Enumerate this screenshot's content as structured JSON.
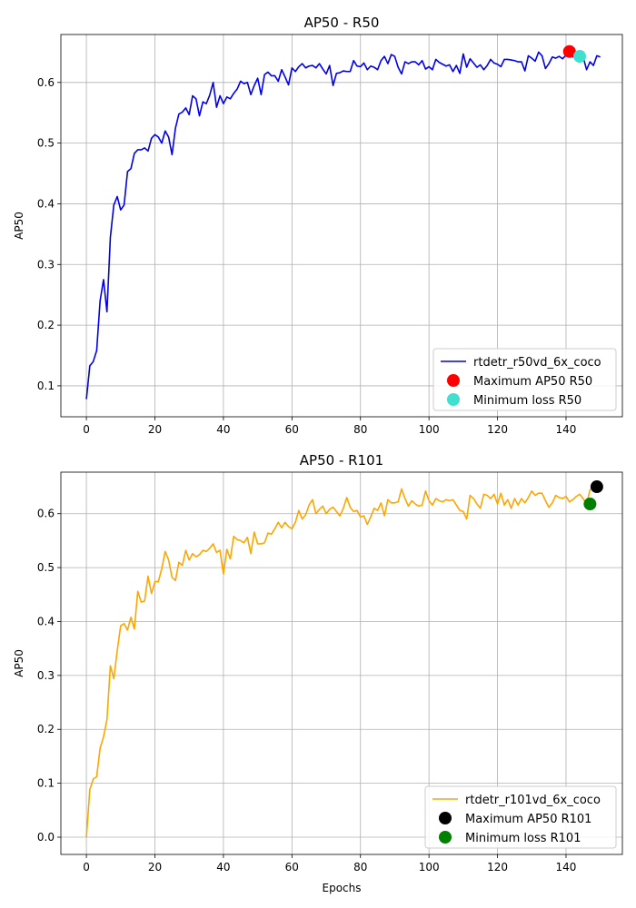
{
  "chart_data": [
    {
      "type": "line",
      "title": "AP50 - R50",
      "xlabel": "",
      "ylabel": "AP50",
      "xlim": [
        -7.45,
        156.45
      ],
      "ylim": [
        0.049,
        0.679
      ],
      "xticks": [
        0,
        20,
        40,
        60,
        80,
        100,
        120,
        140
      ],
      "yticks": [
        0.1,
        0.2,
        0.3,
        0.4,
        0.5,
        0.6
      ],
      "ytick_labels": [
        "0.1",
        "0.2",
        "0.3",
        "0.4",
        "0.5",
        "0.6"
      ],
      "grid": true,
      "legend_position": "lower-right",
      "series": [
        {
          "name": "rtdetr_r50vd_6x_coco",
          "color": "#0000ee",
          "x_start": 0,
          "x_step": 1,
          "values": [
            0.078,
            0.133,
            0.14,
            0.158,
            0.24,
            0.275,
            0.222,
            0.345,
            0.398,
            0.412,
            0.39,
            0.398,
            0.453,
            0.458,
            0.483,
            0.489,
            0.489,
            0.492,
            0.487,
            0.508,
            0.514,
            0.51,
            0.5,
            0.52,
            0.51,
            0.481,
            0.525,
            0.548,
            0.551,
            0.558,
            0.547,
            0.578,
            0.573,
            0.545,
            0.568,
            0.565,
            0.579,
            0.6,
            0.559,
            0.578,
            0.565,
            0.576,
            0.573,
            0.582,
            0.589,
            0.602,
            0.598,
            0.6,
            0.58,
            0.595,
            0.607,
            0.58,
            0.613,
            0.617,
            0.611,
            0.611,
            0.602,
            0.621,
            0.609,
            0.596,
            0.624,
            0.618,
            0.626,
            0.631,
            0.624,
            0.627,
            0.628,
            0.624,
            0.631,
            0.622,
            0.614,
            0.628,
            0.595,
            0.615,
            0.616,
            0.619,
            0.618,
            0.618,
            0.636,
            0.627,
            0.626,
            0.632,
            0.621,
            0.627,
            0.625,
            0.621,
            0.636,
            0.643,
            0.631,
            0.646,
            0.643,
            0.625,
            0.614,
            0.634,
            0.631,
            0.634,
            0.634,
            0.629,
            0.636,
            0.622,
            0.626,
            0.621,
            0.638,
            0.633,
            0.63,
            0.627,
            0.629,
            0.618,
            0.628,
            0.615,
            0.647,
            0.625,
            0.639,
            0.632,
            0.625,
            0.629,
            0.621,
            0.628,
            0.638,
            0.632,
            0.63,
            0.626,
            0.638,
            0.638,
            0.637,
            0.636,
            0.634,
            0.634,
            0.619,
            0.644,
            0.64,
            0.635,
            0.65,
            0.644,
            0.623,
            0.631,
            0.642,
            0.64,
            0.643,
            0.639,
            0.645,
            0.646,
            0.642,
            0.648,
            0.638,
            0.642,
            0.621,
            0.634,
            0.628,
            0.644,
            0.642
          ]
        }
      ],
      "markers": [
        {
          "name": "Maximum AP50 R50",
          "x": 141,
          "y": 0.651,
          "color": "#ff0000"
        },
        {
          "name": "Minimum loss R50",
          "x": 144,
          "y": 0.643,
          "color": "#40e0d0"
        }
      ]
    },
    {
      "type": "line",
      "title": "AP50 - R101",
      "xlabel": "Epochs",
      "ylabel": "AP50",
      "xlim": [
        -7.45,
        156.45
      ],
      "ylim": [
        -0.032,
        0.677
      ],
      "xticks": [
        0,
        20,
        40,
        60,
        80,
        100,
        120,
        140
      ],
      "yticks": [
        0.0,
        0.1,
        0.2,
        0.3,
        0.4,
        0.5,
        0.6
      ],
      "ytick_labels": [
        "0.0",
        "0.1",
        "0.2",
        "0.3",
        "0.4",
        "0.5",
        "0.6"
      ],
      "grid": true,
      "legend_position": "lower-right",
      "series": [
        {
          "name": "rtdetr_r101vd_6x_coco",
          "color": "#ffa500",
          "x_start": 0,
          "x_step": 1,
          "values": [
            0.0,
            0.088,
            0.108,
            0.112,
            0.165,
            0.186,
            0.218,
            0.318,
            0.294,
            0.346,
            0.392,
            0.396,
            0.384,
            0.408,
            0.386,
            0.456,
            0.436,
            0.438,
            0.484,
            0.452,
            0.474,
            0.474,
            0.498,
            0.53,
            0.514,
            0.482,
            0.476,
            0.51,
            0.504,
            0.532,
            0.514,
            0.526,
            0.52,
            0.524,
            0.532,
            0.53,
            0.536,
            0.544,
            0.528,
            0.532,
            0.488,
            0.534,
            0.516,
            0.558,
            0.552,
            0.55,
            0.546,
            0.556,
            0.526,
            0.566,
            0.544,
            0.544,
            0.546,
            0.564,
            0.562,
            0.572,
            0.584,
            0.574,
            0.584,
            0.576,
            0.572,
            0.584,
            0.606,
            0.59,
            0.598,
            0.616,
            0.626,
            0.6,
            0.608,
            0.614,
            0.6,
            0.608,
            0.612,
            0.604,
            0.596,
            0.61,
            0.63,
            0.612,
            0.604,
            0.606,
            0.594,
            0.596,
            0.58,
            0.594,
            0.61,
            0.606,
            0.62,
            0.596,
            0.626,
            0.62,
            0.62,
            0.622,
            0.646,
            0.628,
            0.614,
            0.624,
            0.618,
            0.614,
            0.616,
            0.642,
            0.624,
            0.616,
            0.628,
            0.624,
            0.622,
            0.626,
            0.624,
            0.626,
            0.616,
            0.606,
            0.604,
            0.59,
            0.634,
            0.628,
            0.618,
            0.61,
            0.636,
            0.634,
            0.628,
            0.636,
            0.618,
            0.638,
            0.616,
            0.626,
            0.61,
            0.628,
            0.616,
            0.628,
            0.62,
            0.63,
            0.642,
            0.634,
            0.638,
            0.638,
            0.624,
            0.612,
            0.62,
            0.634,
            0.63,
            0.628,
            0.632,
            0.622,
            0.626,
            0.632,
            0.636,
            0.628,
            0.618,
            0.644,
            0.65
          ]
        }
      ],
      "markers": [
        {
          "name": "Maximum AP50 R101",
          "x": 149,
          "y": 0.65,
          "color": "#000000"
        },
        {
          "name": "Minimum loss R101",
          "x": 147,
          "y": 0.618,
          "color": "#008000"
        }
      ]
    }
  ]
}
